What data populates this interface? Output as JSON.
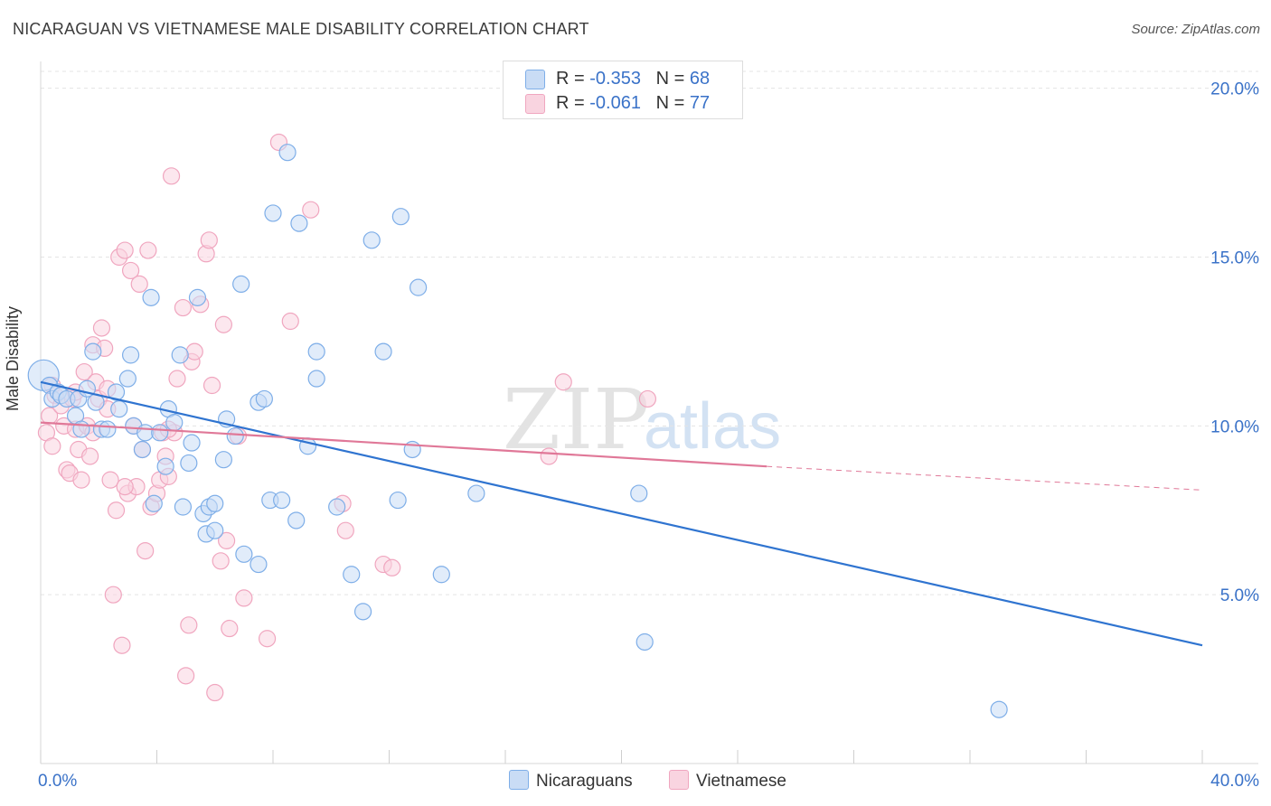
{
  "title": "NICARAGUAN VS VIETNAMESE MALE DISABILITY CORRELATION CHART",
  "source": "Source: ZipAtlas.com",
  "watermark": {
    "zip": "ZIP",
    "atlas": "atlas"
  },
  "legend": {
    "rows": [
      {
        "r_label": "R = ",
        "r_value": "-0.353",
        "n_label": "N = ",
        "n_value": "68"
      },
      {
        "r_label": "R = ",
        "r_value": "-0.061",
        "n_label": "N = ",
        "n_value": "77"
      }
    ]
  },
  "bottom_legend": [
    "Nicaraguans",
    "Vietnamese"
  ],
  "colors": {
    "nicaraguan": "#7eaee8",
    "nicaraguan_fill": "#c9dcf5",
    "nicaraguan_line": "#2f74d0",
    "vietnamese": "#f0a6bf",
    "vietnamese_fill": "#f9d4e0",
    "vietnamese_line": "#e07898",
    "axis_text": "#3a72c8"
  },
  "chart_data": {
    "type": "scatter",
    "title": "NICARAGUAN VS VIETNAMESE MALE DISABILITY CORRELATION CHART",
    "xlabel": "",
    "ylabel": "Male Disability",
    "xlim": [
      0,
      40
    ],
    "ylim": [
      0,
      20.5
    ],
    "x_tick_labels": [
      "0.0%",
      "40.0%"
    ],
    "y_ticks": [
      5,
      10,
      15,
      20
    ],
    "y_tick_labels": [
      "5.0%",
      "10.0%",
      "15.0%",
      "20.0%"
    ],
    "grid": true,
    "series": [
      {
        "name": "Nicaraguans",
        "r": -0.353,
        "n": 68,
        "trend": {
          "x": [
            0,
            40
          ],
          "y": [
            11.3,
            3.5
          ]
        },
        "points": [
          [
            0.1,
            11.5
          ],
          [
            0.3,
            11.2
          ],
          [
            0.4,
            10.8
          ],
          [
            0.6,
            11.0
          ],
          [
            0.7,
            10.9
          ],
          [
            0.9,
            10.8
          ],
          [
            1.2,
            10.3
          ],
          [
            1.3,
            10.8
          ],
          [
            1.4,
            9.9
          ],
          [
            1.6,
            11.1
          ],
          [
            1.8,
            12.2
          ],
          [
            1.9,
            10.7
          ],
          [
            2.1,
            9.9
          ],
          [
            2.3,
            9.9
          ],
          [
            2.6,
            11.0
          ],
          [
            2.7,
            10.5
          ],
          [
            3.0,
            11.4
          ],
          [
            3.1,
            12.1
          ],
          [
            3.2,
            10.0
          ],
          [
            3.5,
            9.3
          ],
          [
            3.6,
            9.8
          ],
          [
            3.8,
            13.8
          ],
          [
            3.9,
            7.7
          ],
          [
            4.1,
            9.8
          ],
          [
            4.3,
            8.8
          ],
          [
            4.4,
            10.5
          ],
          [
            4.6,
            10.1
          ],
          [
            4.8,
            12.1
          ],
          [
            4.9,
            7.6
          ],
          [
            5.1,
            8.9
          ],
          [
            5.2,
            9.5
          ],
          [
            5.4,
            13.8
          ],
          [
            5.6,
            7.4
          ],
          [
            5.7,
            6.8
          ],
          [
            5.8,
            7.6
          ],
          [
            6.0,
            6.9
          ],
          [
            6.0,
            7.7
          ],
          [
            6.3,
            9.0
          ],
          [
            6.4,
            10.2
          ],
          [
            6.7,
            9.7
          ],
          [
            6.9,
            14.2
          ],
          [
            7.0,
            6.2
          ],
          [
            7.5,
            10.7
          ],
          [
            7.7,
            10.8
          ],
          [
            7.9,
            7.8
          ],
          [
            7.5,
            5.9
          ],
          [
            8.0,
            16.3
          ],
          [
            8.3,
            7.8
          ],
          [
            8.5,
            18.1
          ],
          [
            8.8,
            7.2
          ],
          [
            8.9,
            16.0
          ],
          [
            9.2,
            9.4
          ],
          [
            9.5,
            11.4
          ],
          [
            9.5,
            12.2
          ],
          [
            10.2,
            7.6
          ],
          [
            10.7,
            5.6
          ],
          [
            11.1,
            4.5
          ],
          [
            11.4,
            15.5
          ],
          [
            11.8,
            12.2
          ],
          [
            12.3,
            7.8
          ],
          [
            12.4,
            16.2
          ],
          [
            12.8,
            9.3
          ],
          [
            13.0,
            14.1
          ],
          [
            13.8,
            5.6
          ],
          [
            15.0,
            8.0
          ],
          [
            20.6,
            8.0
          ],
          [
            20.8,
            3.6
          ],
          [
            33.0,
            1.6
          ]
        ]
      },
      {
        "name": "Vietnamese",
        "r": -0.061,
        "n": 77,
        "trend": {
          "x": [
            0,
            25
          ],
          "y": [
            10.1,
            8.8
          ]
        },
        "trend_dashed": {
          "x": [
            25,
            40
          ],
          "y": [
            8.8,
            8.1
          ]
        },
        "points": [
          [
            0.2,
            9.8
          ],
          [
            0.3,
            10.3
          ],
          [
            0.4,
            9.4
          ],
          [
            0.5,
            10.9
          ],
          [
            0.7,
            10.6
          ],
          [
            0.8,
            10.0
          ],
          [
            0.9,
            8.7
          ],
          [
            1.0,
            8.6
          ],
          [
            1.1,
            10.8
          ],
          [
            1.2,
            9.9
          ],
          [
            1.3,
            9.3
          ],
          [
            1.5,
            11.6
          ],
          [
            1.4,
            8.4
          ],
          [
            1.6,
            10.0
          ],
          [
            1.7,
            9.1
          ],
          [
            1.8,
            9.8
          ],
          [
            1.8,
            12.4
          ],
          [
            1.9,
            11.3
          ],
          [
            2.0,
            10.8
          ],
          [
            2.1,
            12.9
          ],
          [
            2.2,
            12.3
          ],
          [
            2.3,
            10.5
          ],
          [
            2.3,
            11.1
          ],
          [
            2.4,
            8.4
          ],
          [
            2.5,
            5.0
          ],
          [
            2.6,
            7.5
          ],
          [
            2.7,
            15.0
          ],
          [
            2.8,
            3.5
          ],
          [
            2.9,
            15.2
          ],
          [
            3.0,
            8.0
          ],
          [
            3.1,
            14.6
          ],
          [
            3.2,
            10.0
          ],
          [
            3.3,
            8.2
          ],
          [
            3.4,
            14.2
          ],
          [
            3.5,
            9.3
          ],
          [
            3.6,
            6.3
          ],
          [
            3.7,
            15.2
          ],
          [
            3.8,
            7.6
          ],
          [
            4.0,
            8.0
          ],
          [
            4.1,
            8.4
          ],
          [
            4.2,
            9.8
          ],
          [
            4.3,
            9.1
          ],
          [
            4.4,
            8.5
          ],
          [
            4.5,
            17.4
          ],
          [
            4.6,
            9.8
          ],
          [
            4.7,
            11.4
          ],
          [
            4.9,
            13.5
          ],
          [
            5.0,
            2.6
          ],
          [
            5.1,
            4.1
          ],
          [
            5.2,
            11.9
          ],
          [
            5.3,
            12.2
          ],
          [
            5.7,
            15.1
          ],
          [
            5.8,
            15.5
          ],
          [
            5.9,
            11.2
          ],
          [
            6.0,
            2.1
          ],
          [
            6.2,
            6.0
          ],
          [
            6.3,
            13.0
          ],
          [
            6.4,
            6.6
          ],
          [
            6.5,
            4.0
          ],
          [
            6.8,
            9.7
          ],
          [
            7.0,
            4.9
          ],
          [
            7.8,
            3.7
          ],
          [
            8.2,
            18.4
          ],
          [
            8.6,
            13.1
          ],
          [
            9.3,
            16.4
          ],
          [
            10.4,
            7.7
          ],
          [
            10.5,
            6.9
          ],
          [
            11.8,
            5.9
          ],
          [
            12.1,
            5.8
          ],
          [
            17.5,
            9.1
          ],
          [
            18.0,
            11.3
          ],
          [
            20.9,
            10.8
          ],
          [
            4.4,
            9.9
          ],
          [
            2.9,
            8.2
          ],
          [
            1.2,
            11.0
          ],
          [
            0.4,
            11.2
          ],
          [
            5.5,
            13.6
          ]
        ]
      }
    ]
  }
}
